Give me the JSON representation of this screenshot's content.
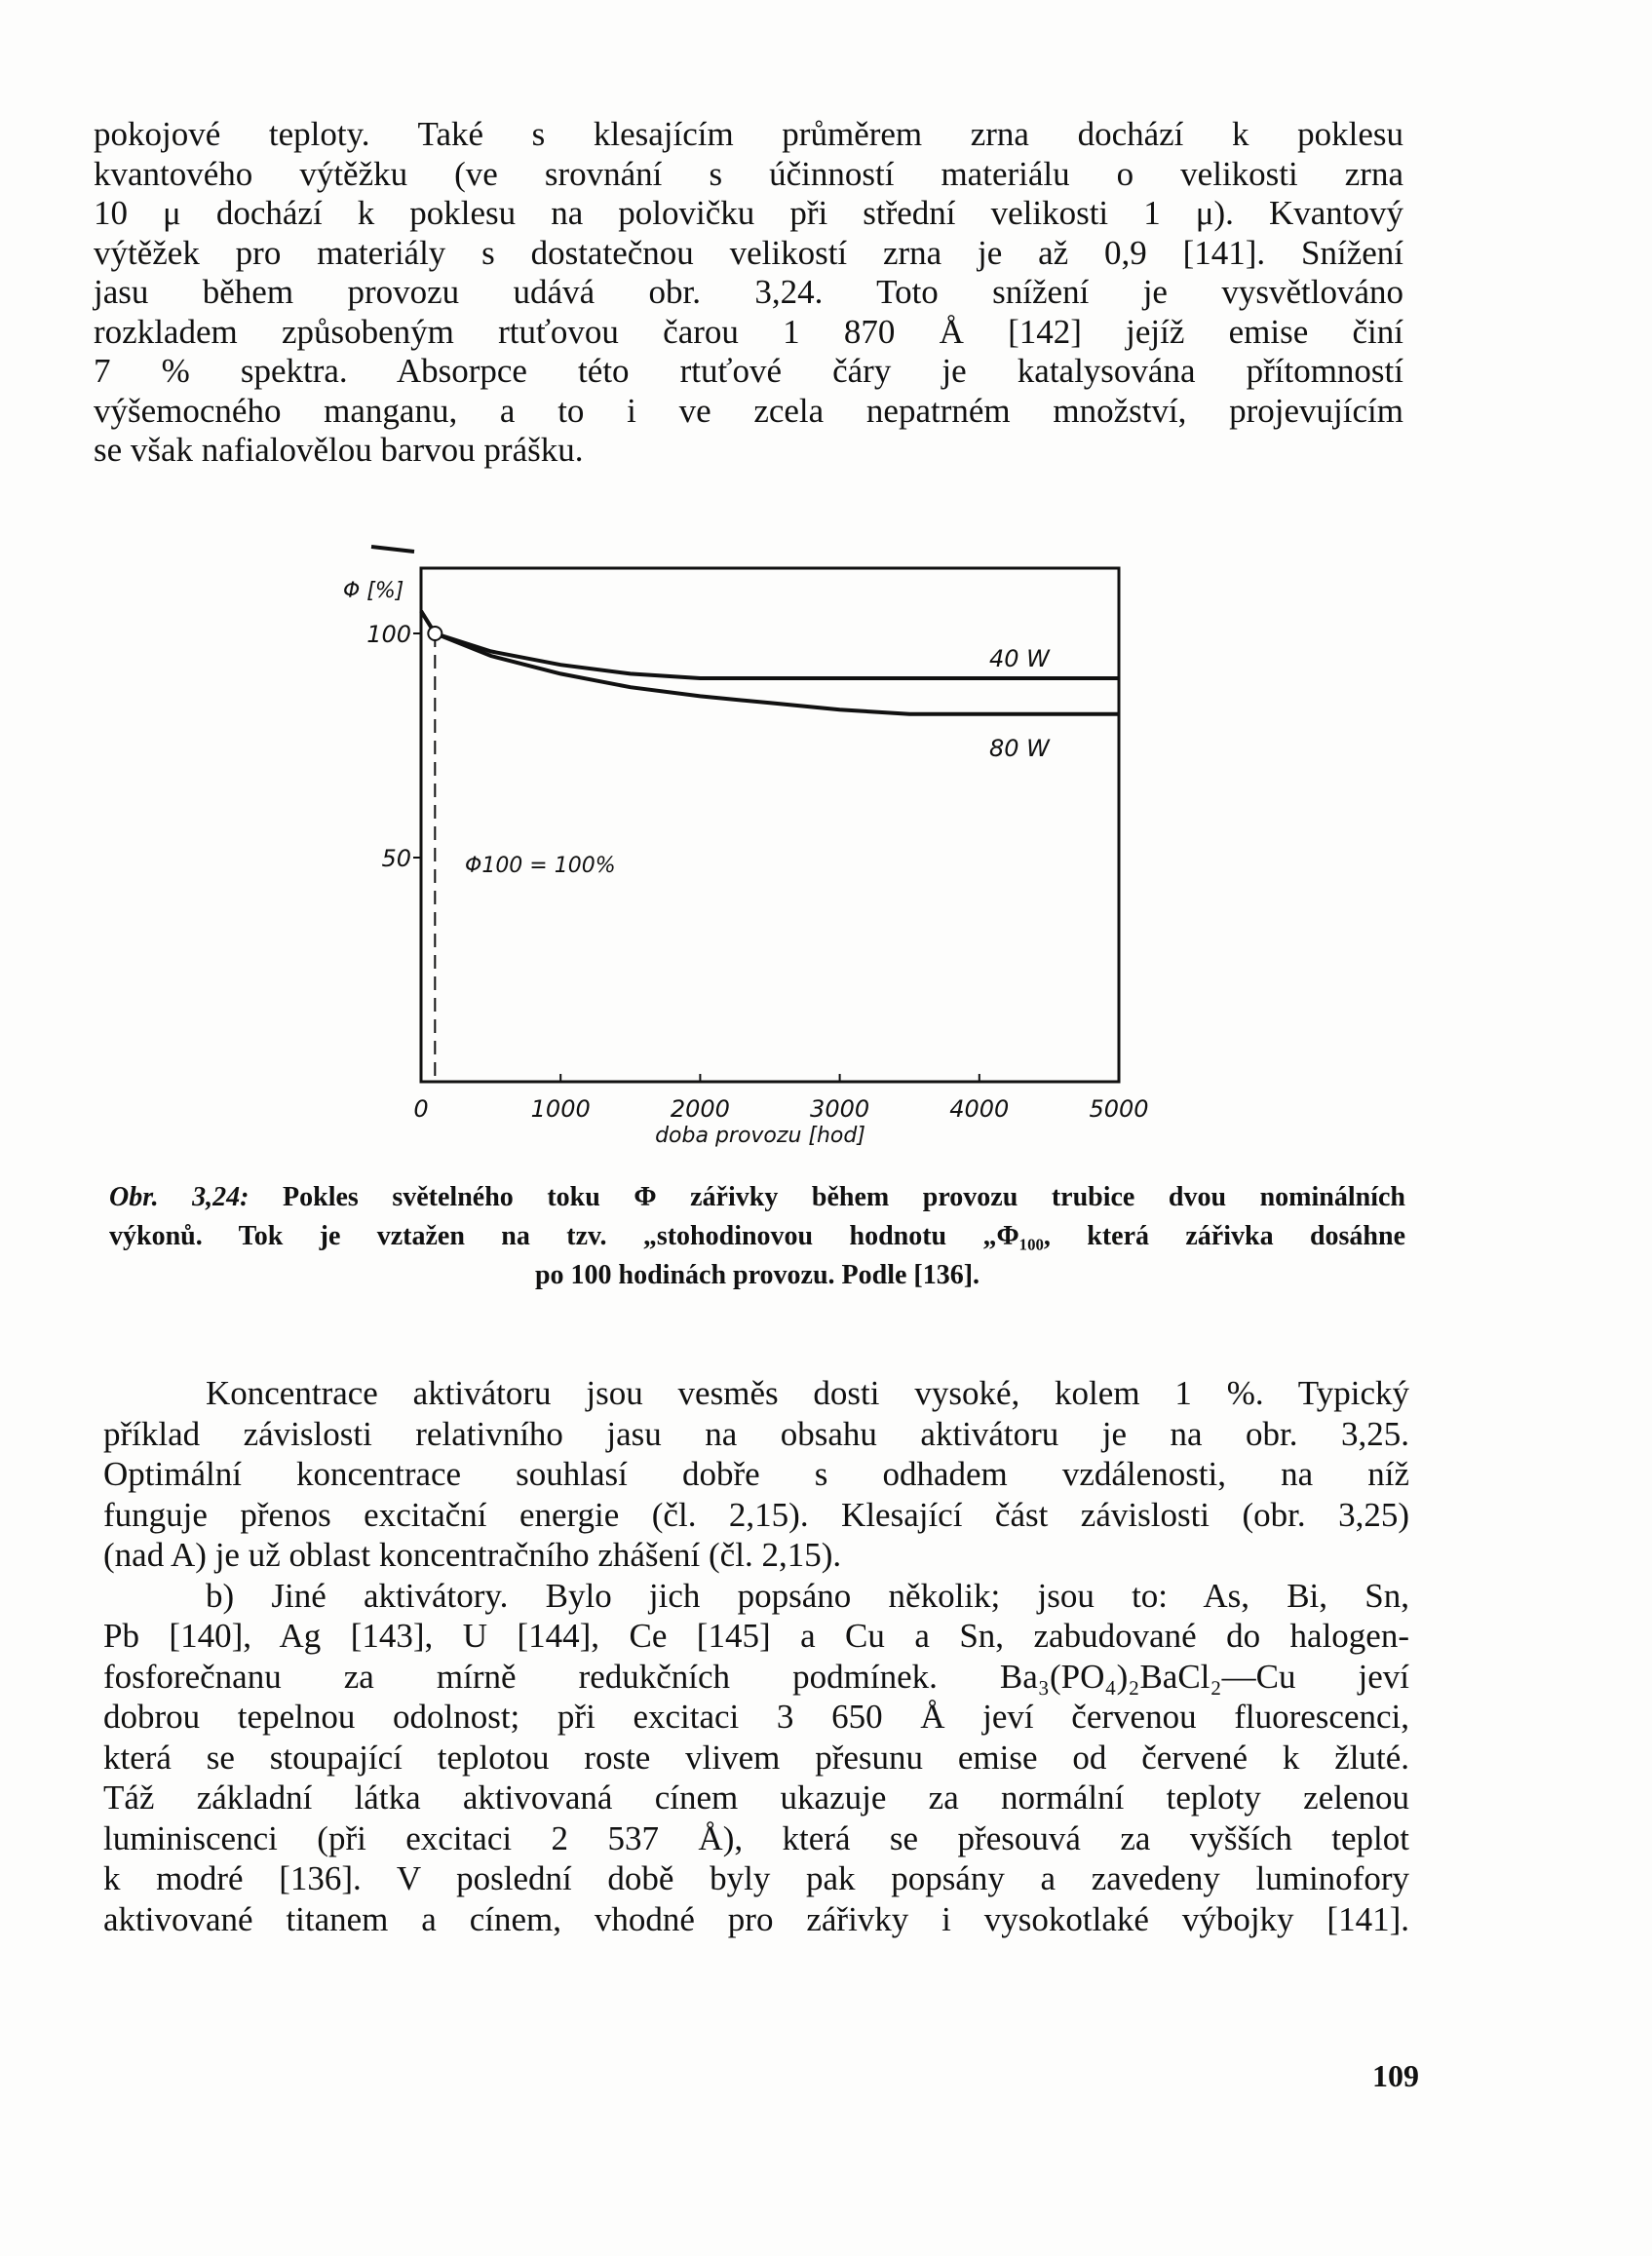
{
  "top_paragraph": [
    "pokojové teploty. Také s klesajícím průměrem zrna dochází k poklesu",
    "kvantového výtěžku (ve srovnání s účinností materiálu o velikosti zrna",
    "10 μ dochází k poklesu na polovičku při střední velikosti 1 μ). Kvantový",
    "výtěžek pro materiály s dostatečnou velikostí zrna je až 0,9 [141]. Snížení",
    "jasu během provozu udává obr. 3,24. Toto snížení je vysvětlováno",
    "rozkladem způsobeným rtuťovou čarou 1 870 Å [142] jejíž emise činí",
    "7 % spektra. Absorpce této rtuťové čáry je katalysována přítomností",
    "výšemocného manganu, a to i ve zcela nepatrném množství, projevujícím",
    "se však nafialovělou barvou prášku."
  ],
  "chart_data": {
    "type": "line",
    "ylabel": "Φ [%]",
    "xlabel": "doba provozu [hod]",
    "x_ticks": [
      "0",
      "1000",
      "2000",
      "3000",
      "4000",
      "5000"
    ],
    "y_ticks": [
      "50",
      "100"
    ],
    "xlim": [
      0,
      5000
    ],
    "ylim": [
      0,
      115
    ],
    "grid": false,
    "annotation": "Φ100 = 100%",
    "reference_x": 100,
    "reference_point": [
      100,
      100
    ],
    "series": [
      {
        "name": "40 W",
        "x": [
          0,
          100,
          500,
          1000,
          1500,
          2000,
          2500,
          3000,
          4000,
          5000
        ],
        "y": [
          105,
          100,
          96,
          93,
          91,
          90,
          90,
          90,
          90,
          90
        ]
      },
      {
        "name": "80 W",
        "x": [
          0,
          100,
          500,
          1000,
          1500,
          2000,
          2500,
          3000,
          3500,
          4000,
          5000
        ],
        "y": [
          105,
          100,
          95,
          91,
          88,
          86,
          84.5,
          83,
          82,
          82,
          82
        ]
      }
    ]
  },
  "caption": {
    "label": "Obr. 3,24:",
    "lines": [
      "Pokles světelného toku Φ zářivky během provozu trubice dvou nominálních",
      "výkonů. Tok je vztažen na tzv. „stohodinovou hodnotu „Φ₁₀₀, která zářivka dosáhne",
      "po 100 hodinách provozu. Podle [136]."
    ]
  },
  "bottom_paragraph": [
    "Koncentrace aktivátoru jsou vesměs dosti vysoké, kolem 1 %. Typický",
    "příklad závislosti relativního jasu na obsahu aktivátoru je na obr. 3,25.",
    "Optimální koncentrace souhlasí dobře s odhadem vzdálenosti, na níž",
    "funguje přenos excitační energie (čl. 2,15). Klesající část závislosti (obr. 3,25)",
    "(nad A) je už oblast koncentračního zhášení (čl. 2,15).",
    "b) Jiné aktivátory. Bylo jich popsáno několik; jsou to: As, Bi, Sn,",
    "Pb [140], Ag [143], U [144], Ce [145] a Cu a Sn, zabudované do halogen-",
    "fosforečnanu za mírně redukčních podmínek. Ba₃(PO₄)₂BaCl₂—Cu jeví",
    "dobrou tepelnou odolnost; při excitaci 3 650 Å jeví červenou fluorescenci,",
    "která se stoupající teplotou roste vlivem přesunu emise od červené k žluté.",
    "Táž základní látka aktivovaná cínem ukazuje za normální teploty zelenou",
    "luminiscenci (při excitaci 2 537 Å), která se přesouvá za vyšších teplot",
    "k modré [136]. V poslední době byly pak popsány a zavedeny luminofory",
    "aktivované titanem a cínem, vhodné pro zářivky i vysokotlaké výbojky [141]."
  ],
  "page_number": "109"
}
